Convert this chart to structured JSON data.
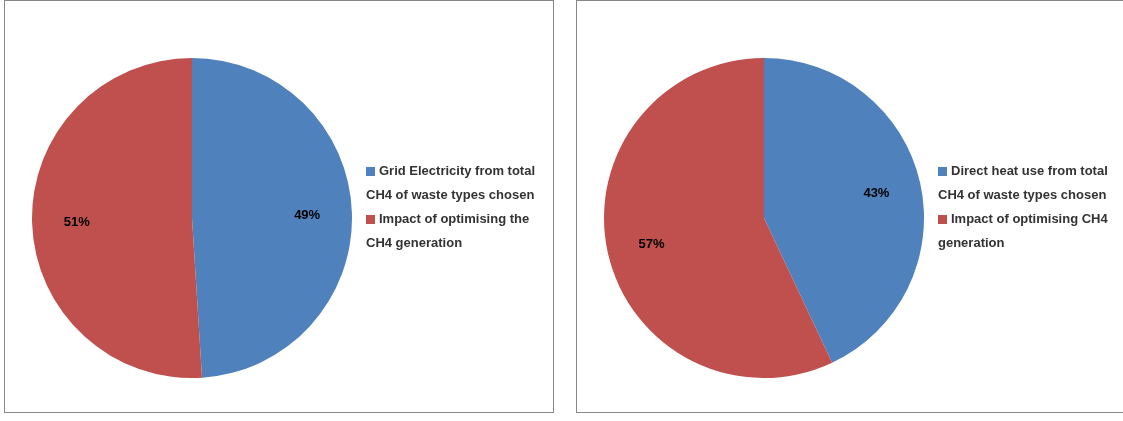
{
  "chart_data": [
    {
      "type": "pie",
      "categories": [
        "Grid Electricity from total CH4 of waste types chosen",
        "Impact of optimising the CH4 generation"
      ],
      "values": [
        49,
        51
      ],
      "colors": [
        "#4f81bd",
        "#c0504d"
      ],
      "value_labels": [
        "49%",
        "51%"
      ],
      "legend": "right"
    },
    {
      "type": "pie",
      "categories": [
        "Direct heat use from total CH4 of waste types chosen",
        "Impact of optimising CH4 generation"
      ],
      "values": [
        43,
        57
      ],
      "colors": [
        "#4f81bd",
        "#c0504d"
      ],
      "value_labels": [
        "43%",
        "57%"
      ],
      "legend": "right"
    }
  ]
}
